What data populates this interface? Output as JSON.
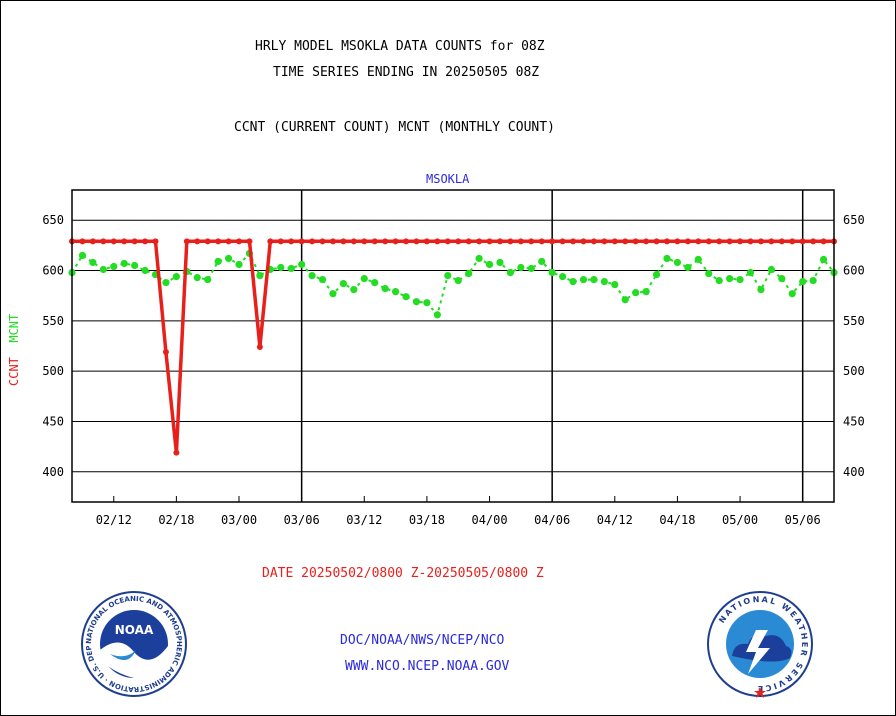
{
  "title_line1": "HRLY MODEL MSOKLA DATA COUNTS for 08Z",
  "title_line2": "TIME SERIES ENDING IN 20250505 08Z",
  "subtitle": "CCNT (CURRENT COUNT) MCNT (MONTHLY COUNT)",
  "ylabel_ccnt": "CCNT",
  "ylabel_mcnt": "MCNT",
  "date_range": "DATE 20250502/0800 Z-20250505/0800 Z",
  "footer_line1": "DOC/NOAA/NWS/NCEP/NCO",
  "footer_line2": "WWW.NCO.NCEP.NOAA.GOV",
  "logos": {
    "left": {
      "icon": "noaa-logo",
      "ring_text": "NATIONAL OCEANIC AND ATMOSPHERIC ADMINISTRATION · U.S. DEPARTMENT OF COMMERCE",
      "center_text": "NOAA"
    },
    "right": {
      "icon": "national-weather-service-logo",
      "ring_text": "NATIONAL WEATHER SERVICE"
    }
  },
  "colors": {
    "ccnt": "#e8201c",
    "mcnt": "#22dd22",
    "station": "#2a2adc",
    "axes": "#000000"
  },
  "chart_data": {
    "type": "line",
    "title": "MSOKLA",
    "ylim": [
      370,
      680
    ],
    "yticks": [
      400,
      450,
      500,
      550,
      600,
      650
    ],
    "ytick_labels": [
      "400",
      "450",
      "500",
      "550",
      "600",
      "650"
    ],
    "x_tick_labels": [
      "02/12",
      "02/18",
      "03/00",
      "03/06",
      "03/12",
      "03/18",
      "04/00",
      "04/06",
      "04/12",
      "04/18",
      "05/00",
      "05/06"
    ],
    "x_count": 74,
    "x_tick_positions": [
      4,
      10,
      16,
      22,
      28,
      34,
      40,
      46,
      52,
      58,
      64,
      70
    ],
    "day_boundaries": [
      22,
      46,
      70
    ],
    "grid": true,
    "series": [
      {
        "name": "CCNT",
        "values": [
          629,
          629,
          629,
          629,
          629,
          629,
          629,
          629,
          629,
          519,
          419,
          629,
          629,
          629,
          629,
          629,
          629,
          629,
          524,
          629,
          629,
          629,
          629,
          629,
          629,
          629,
          629,
          629,
          629,
          629,
          629,
          629,
          629,
          629,
          629,
          629,
          629,
          629,
          629,
          629,
          629,
          629,
          629,
          629,
          629,
          629,
          629,
          629,
          629,
          629,
          629,
          629,
          629,
          629,
          629,
          629,
          629,
          629,
          629,
          629,
          629,
          629,
          629,
          629,
          629,
          629,
          629,
          629,
          629,
          629,
          629,
          629,
          629,
          629
        ]
      },
      {
        "name": "MCNT",
        "values": [
          598,
          615,
          608,
          601,
          604,
          607,
          605,
          600,
          596,
          588,
          594,
          599,
          593,
          591,
          609,
          612,
          606,
          617,
          595,
          601,
          603,
          602,
          606,
          595,
          591,
          577,
          587,
          581,
          592,
          588,
          582,
          579,
          574,
          569,
          568,
          556,
          595,
          590,
          597,
          612,
          606,
          608,
          598,
          603,
          602,
          609,
          598,
          594,
          589,
          591,
          591,
          589,
          586,
          571,
          578,
          579,
          596,
          612,
          608,
          603,
          611,
          597,
          590,
          592,
          591,
          598,
          581,
          601,
          592,
          577,
          589,
          590,
          611,
          598
        ]
      }
    ]
  }
}
